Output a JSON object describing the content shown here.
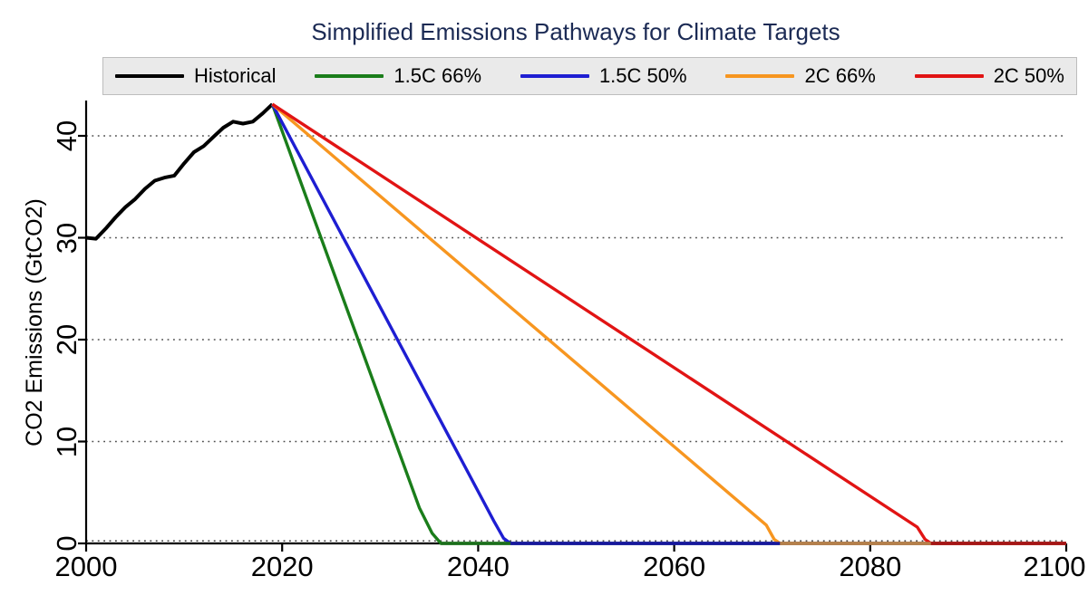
{
  "chart_data": {
    "type": "line",
    "title": "Simplified Emissions Pathways for Climate Targets",
    "xlabel": "",
    "ylabel": "CO2 Emissions (GtCO2)",
    "xlim": [
      2000,
      2100
    ],
    "ylim": [
      0,
      43.5
    ],
    "x_ticks": [
      2000,
      2020,
      2040,
      2060,
      2080,
      2100
    ],
    "y_ticks": [
      0,
      10,
      20,
      30,
      40
    ],
    "grid": "horizontal-dotted",
    "legend_position": "top",
    "title_color": "#1b2a54",
    "series": [
      {
        "name": "Historical",
        "color": "#000000",
        "points": [
          [
            2000,
            30.0
          ],
          [
            2001,
            29.9
          ],
          [
            2002,
            30.9
          ],
          [
            2003,
            32.0
          ],
          [
            2004,
            33.0
          ],
          [
            2005,
            33.8
          ],
          [
            2006,
            34.8
          ],
          [
            2007,
            35.6
          ],
          [
            2008,
            35.9
          ],
          [
            2009,
            36.1
          ],
          [
            2010,
            37.3
          ],
          [
            2011,
            38.4
          ],
          [
            2012,
            39.0
          ],
          [
            2013,
            39.9
          ],
          [
            2014,
            40.8
          ],
          [
            2015,
            41.4
          ],
          [
            2016,
            41.2
          ],
          [
            2017,
            41.4
          ],
          [
            2018,
            42.2
          ],
          [
            2019,
            43.1
          ]
        ]
      },
      {
        "name": "1.5C 66%",
        "color": "#1a7d1a",
        "zero_year": 2036.2,
        "points": [
          [
            2019,
            43.1
          ],
          [
            2034,
            3.5
          ],
          [
            2035.3,
            1.0
          ],
          [
            2036.2,
            0
          ],
          [
            2100,
            0
          ]
        ]
      },
      {
        "name": "1.5C 50%",
        "color": "#1e1ed2",
        "zero_year": 2043.3,
        "points": [
          [
            2019,
            43.1
          ],
          [
            2041.6,
            2.2
          ],
          [
            2042.6,
            0.5
          ],
          [
            2043.3,
            0
          ],
          [
            2100,
            0
          ]
        ]
      },
      {
        "name": "2C 66%",
        "color": "#f79620",
        "zero_year": 2070.8,
        "points": [
          [
            2019,
            43.1
          ],
          [
            2069.4,
            1.8
          ],
          [
            2070.2,
            0.4
          ],
          [
            2070.8,
            0
          ],
          [
            2100,
            0
          ]
        ]
      },
      {
        "name": "2C 50%",
        "color": "#e11414",
        "zero_year": 2086.2,
        "points": [
          [
            2019,
            43.1
          ],
          [
            2084.8,
            1.6
          ],
          [
            2085.6,
            0.4
          ],
          [
            2086.2,
            0
          ],
          [
            2100,
            0
          ]
        ]
      }
    ]
  }
}
